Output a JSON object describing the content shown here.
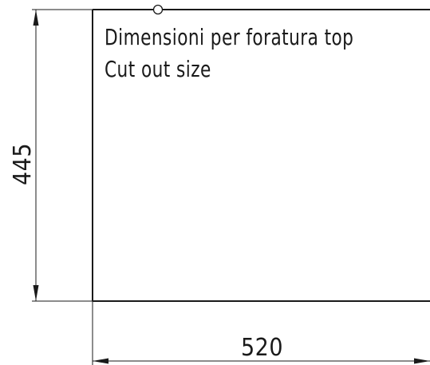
{
  "drawing": {
    "title_it": "Dimensioni per foratura top",
    "title_en": "Cut out size",
    "dimension_height": "445",
    "dimension_width": "520"
  },
  "colors": {
    "line": "#1a1a1a",
    "background": "#ffffff"
  }
}
